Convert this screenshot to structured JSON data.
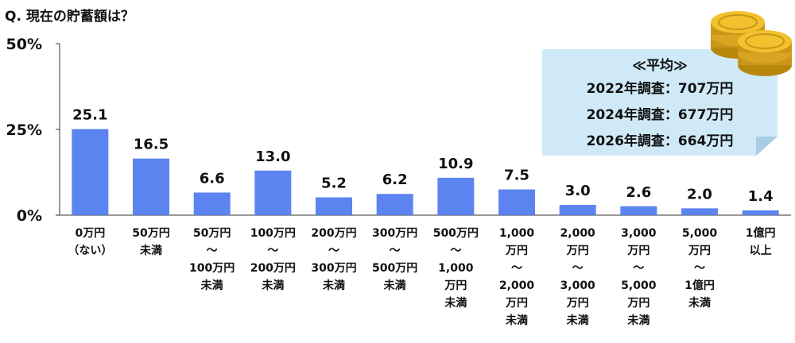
{
  "question_title": "Q.  現在の貯蓄額は？",
  "note": {
    "heading": "≪平均≫",
    "lines": [
      "2022年調査：707万円",
      "2024年調査：677万円",
      "2026年調査：664万円"
    ]
  },
  "chart_data": {
    "type": "bar",
    "title": "Q.  現在の貯蓄額は？",
    "categories": [
      [
        "0万円",
        "（ない）"
      ],
      [
        "50万円",
        "未満"
      ],
      [
        "50万円",
        "～",
        "100万円",
        "未満"
      ],
      [
        "100万円",
        "～",
        "200万円",
        "未満"
      ],
      [
        "200万円",
        "～",
        "300万円",
        "未満"
      ],
      [
        "300万円",
        "～",
        "500万円",
        "未満"
      ],
      [
        "500万円",
        "～",
        "1,000",
        "万円",
        "未満"
      ],
      [
        "1,000",
        "万円",
        "～",
        "2,000",
        "万円",
        "未満"
      ],
      [
        "2,000",
        "万円",
        "～",
        "3,000",
        "万円",
        "未満"
      ],
      [
        "3,000",
        "万円",
        "～",
        "5,000",
        "万円",
        "未満"
      ],
      [
        "5,000",
        "万円",
        "～",
        "1億円",
        "未満"
      ],
      [
        "1億円",
        "以上"
      ]
    ],
    "values": [
      25.1,
      16.5,
      6.6,
      13.0,
      5.2,
      6.2,
      10.9,
      7.5,
      3.0,
      2.6,
      2.0,
      1.4
    ],
    "value_labels": [
      "25.1",
      "16.5",
      "6.6",
      "13.0",
      "5.2",
      "6.2",
      "10.9",
      "7.5",
      "3.0",
      "2.6",
      "2.0",
      "1.4"
    ],
    "y_ticks": [
      0,
      25,
      50
    ],
    "y_tick_labels": [
      "0%",
      "25%",
      "50%"
    ],
    "ylim": [
      0,
      50
    ],
    "xlabel": "",
    "ylabel": "",
    "grid": false,
    "bar_color": "#5b84f0"
  }
}
